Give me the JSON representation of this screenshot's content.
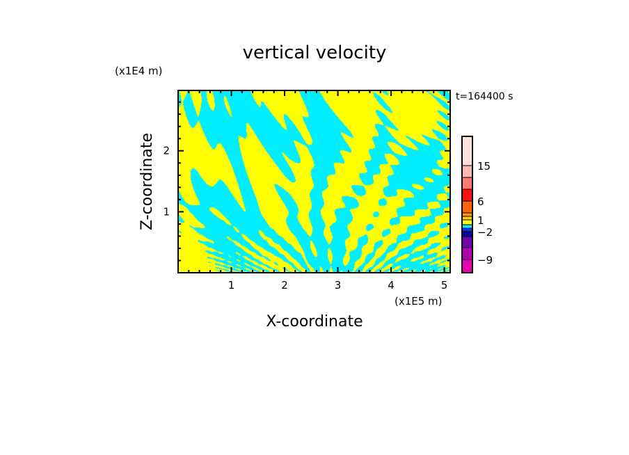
{
  "chart_data": {
    "type": "heatmap",
    "title": "vertical velocity",
    "xlabel": "X-coordinate",
    "ylabel": "Z-coordinate",
    "x_scale_label": "(x1E5 m)",
    "y_scale_label": "(x1E4 m)",
    "time_label": "t=164400 s",
    "xlim": [
      0,
      5.11
    ],
    "ylim": [
      0,
      2.99
    ],
    "xticks": [
      "1",
      "2",
      "3",
      "4",
      "5"
    ],
    "xtick_values": [
      1,
      2,
      3,
      4,
      5
    ],
    "yticks": [
      "1",
      "2"
    ],
    "ytick_values": [
      1,
      2
    ],
    "dominant_colors": {
      "positive_small": "#ffff00",
      "negative_small": "#00eeff"
    },
    "colorbar": {
      "labels": [
        {
          "text": "15",
          "value": 15
        },
        {
          "text": "6",
          "value": 6
        },
        {
          "text": "1",
          "value": 1
        },
        {
          "text": "−2",
          "value": -2
        },
        {
          "text": "−9",
          "value": -9
        }
      ],
      "bands": [
        {
          "from": 15,
          "to": 21,
          "color": "#ffe0e0"
        },
        {
          "from": 12,
          "to": 15,
          "color": "#ffb8b8"
        },
        {
          "from": 9,
          "to": 12,
          "color": "#ff7a70"
        },
        {
          "from": 6,
          "to": 9,
          "color": "#ff1010"
        },
        {
          "from": 3,
          "to": 6,
          "color": "#ff6600"
        },
        {
          "from": 2,
          "to": 3,
          "color": "#ff9900"
        },
        {
          "from": 1,
          "to": 2,
          "color": "#ffcc00"
        },
        {
          "from": 0,
          "to": 1,
          "color": "#ffff00"
        },
        {
          "from": -1,
          "to": 0,
          "color": "#00eeff"
        },
        {
          "from": -2,
          "to": -1,
          "color": "#0033ff"
        },
        {
          "from": -3,
          "to": -2,
          "color": "#0a0a9a"
        },
        {
          "from": -6,
          "to": -3,
          "color": "#7000b0"
        },
        {
          "from": -9,
          "to": -6,
          "color": "#b000b0"
        },
        {
          "from": -12,
          "to": -9,
          "color": "#e800b0"
        }
      ]
    }
  }
}
